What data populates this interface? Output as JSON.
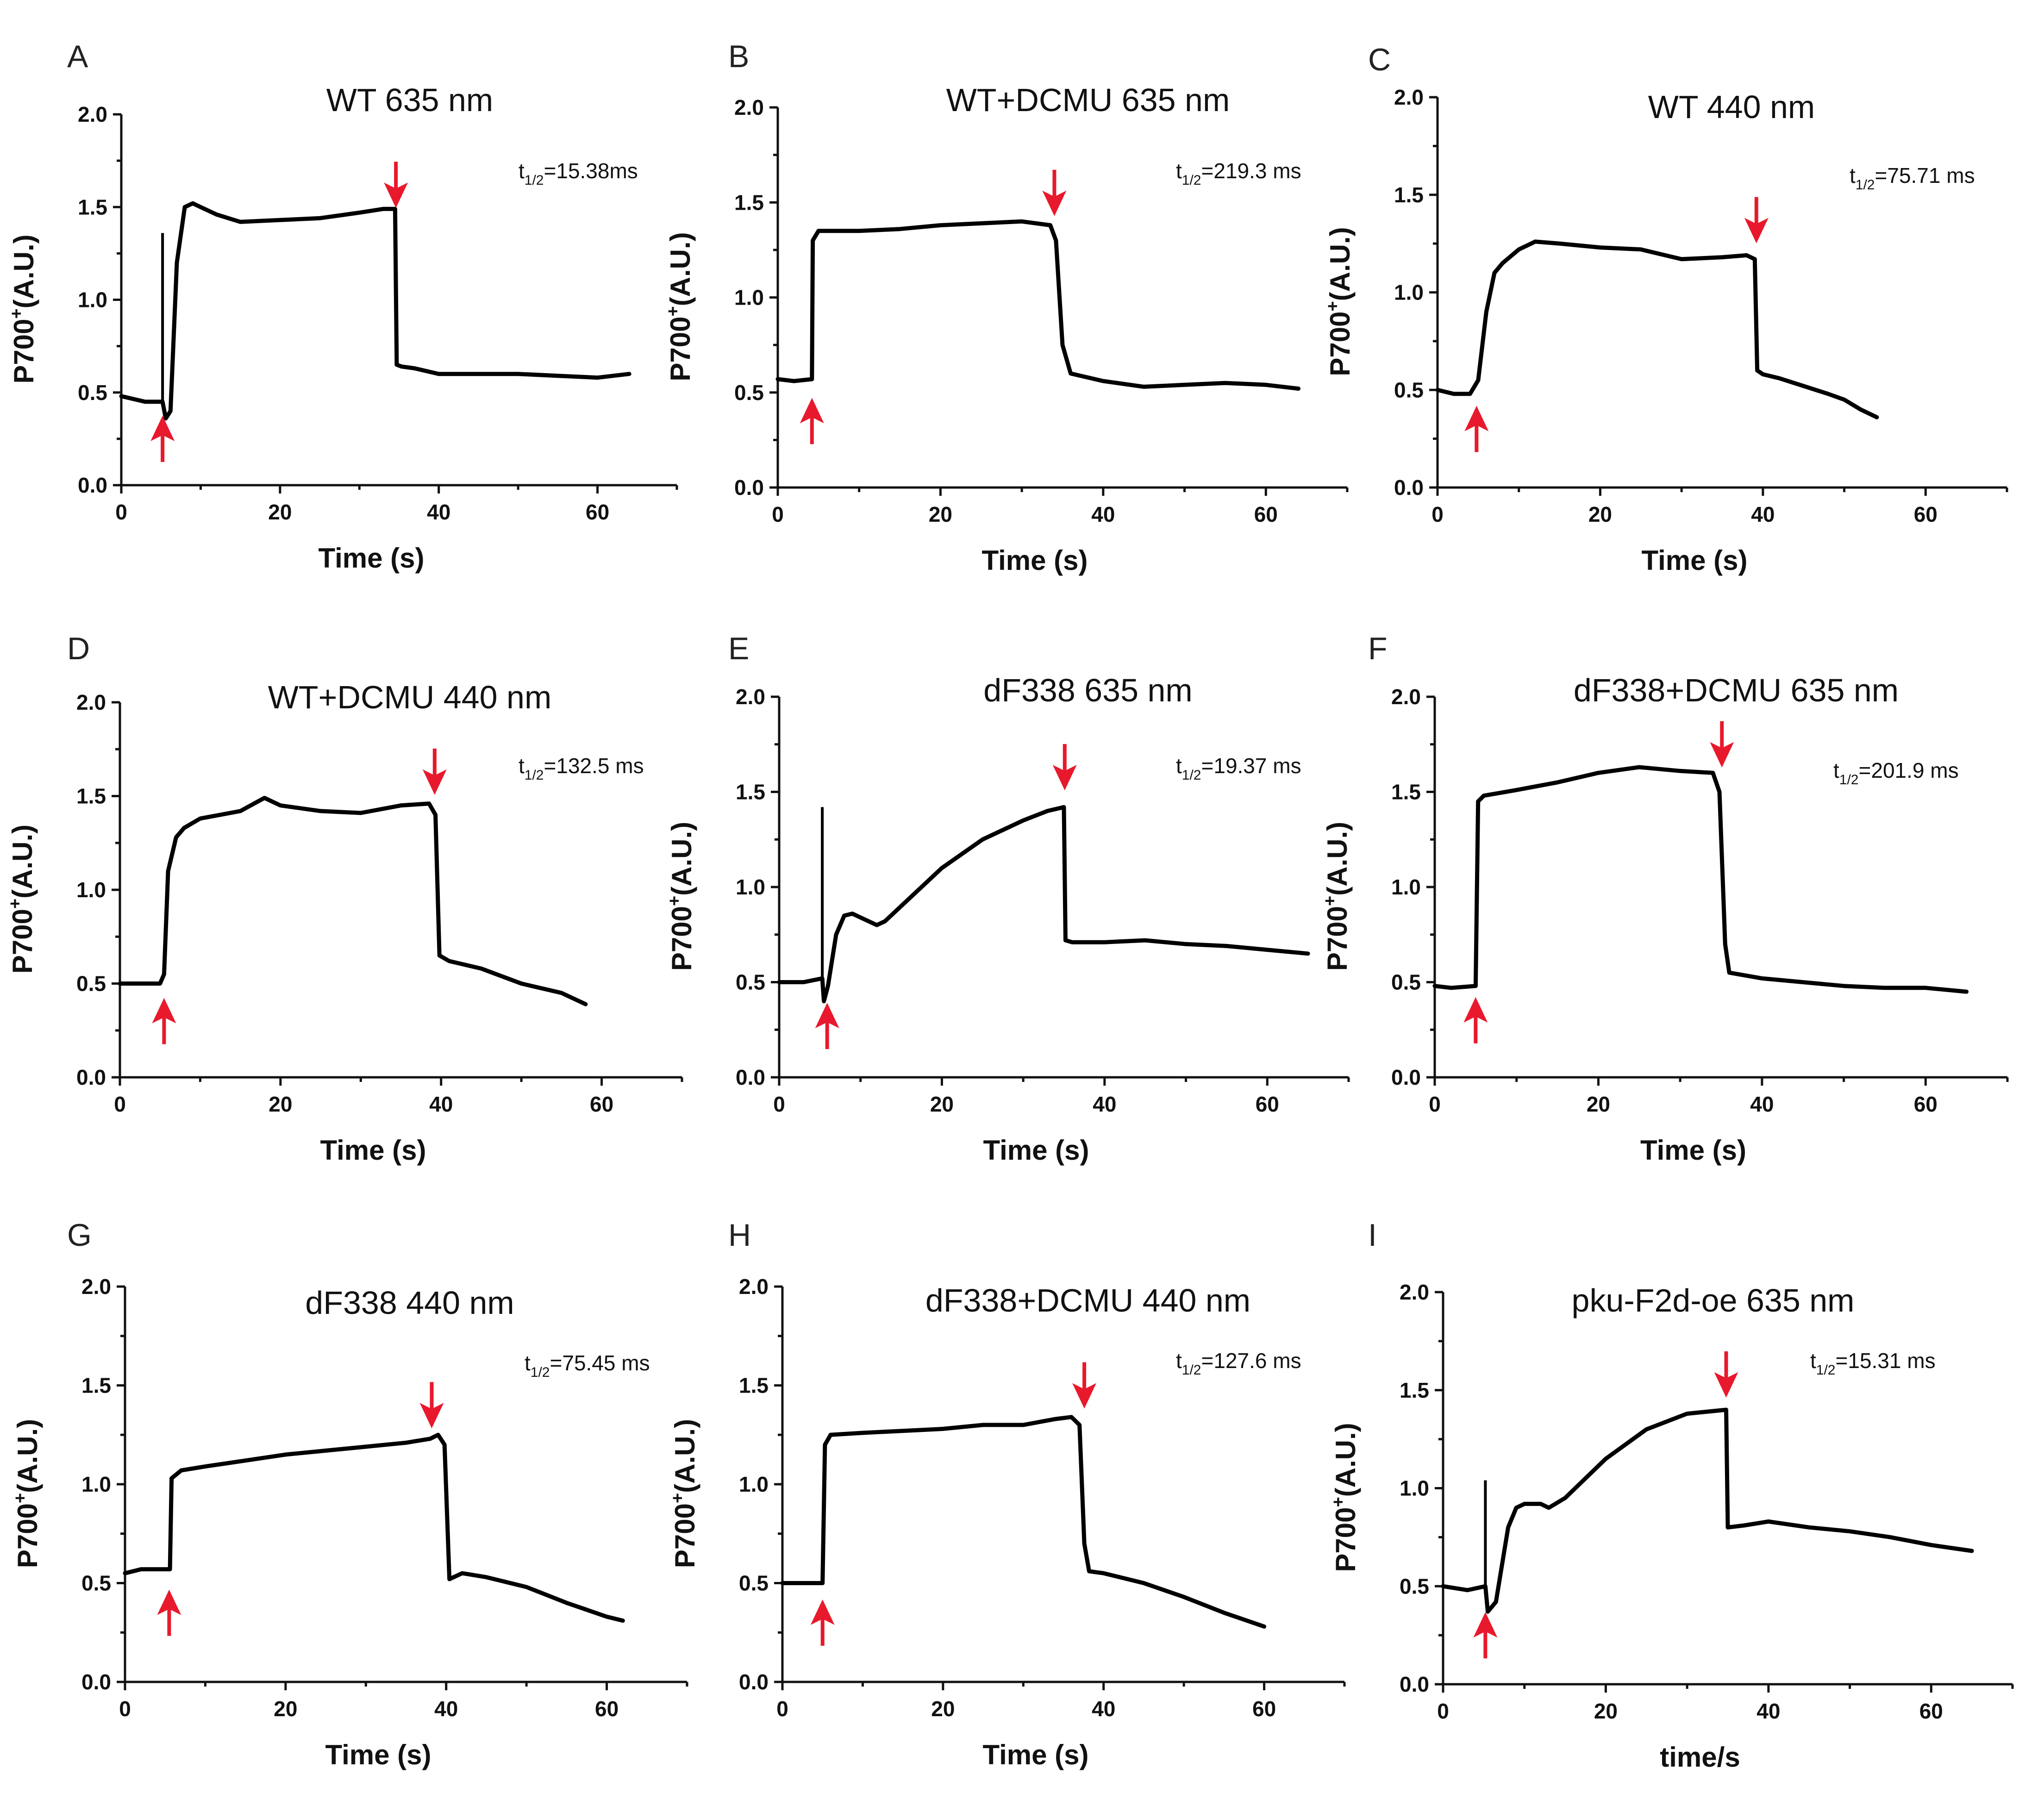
{
  "colors": {
    "trace": "#000000",
    "arrow": "#e8192c",
    "axis": "#111111"
  },
  "chart_data": [
    {
      "type": "line",
      "letter": "A",
      "title": "WT 635 nm",
      "t_half": "=15.38ms",
      "xlabel": "Time (s)",
      "ylabel": "P700",
      "ylabel_sup": "+",
      "ylabel_suffix": "(A.U.)",
      "xlim": [
        0,
        70
      ],
      "ylim": [
        0,
        2.0
      ],
      "xticks": [
        0,
        20,
        40,
        60
      ],
      "yticks": [
        "0.0",
        "0.5",
        "1.0",
        "1.5",
        "2.0"
      ],
      "series": [
        {
          "name": "P700+",
          "x": [
            0,
            3,
            5.2,
            5.6,
            6.2,
            7,
            8,
            9,
            10,
            12,
            15,
            20,
            25,
            30,
            33,
            34.5,
            34.7,
            35.3,
            37,
            40,
            45,
            50,
            55,
            60,
            64
          ],
          "y": [
            0.48,
            0.45,
            0.45,
            0.36,
            0.4,
            1.2,
            1.5,
            1.52,
            1.5,
            1.46,
            1.42,
            1.43,
            1.44,
            1.47,
            1.49,
            1.49,
            0.65,
            0.64,
            0.63,
            0.6,
            0.6,
            0.6,
            0.59,
            0.58,
            0.6
          ]
        }
      ],
      "spikes": [
        {
          "x": 5.2,
          "y": 1.36
        }
      ],
      "on_arrow": {
        "x": 5.2,
        "y": 0.25
      },
      "off_arrow": {
        "x": 34.6,
        "y": 1.62
      }
    },
    {
      "type": "line",
      "letter": "B",
      "title": "WT+DCMU 635 nm",
      "t_half": "=219.3 ms",
      "xlabel": "Time (s)",
      "ylabel": "P700",
      "ylabel_sup": "+",
      "ylabel_suffix": "(A.U.)",
      "xlim": [
        0,
        70
      ],
      "ylim": [
        0,
        2.0
      ],
      "xticks": [
        0,
        20,
        40,
        60
      ],
      "yticks": [
        "0.0",
        "0.5",
        "1.0",
        "1.5",
        "2.0"
      ],
      "series": [
        {
          "name": "P700+",
          "x": [
            0,
            2,
            4.2,
            4.3,
            5,
            10,
            15,
            20,
            25,
            30,
            33.5,
            34.2,
            35,
            36,
            40,
            45,
            50,
            55,
            60,
            64
          ],
          "y": [
            0.57,
            0.56,
            0.57,
            1.3,
            1.35,
            1.35,
            1.36,
            1.38,
            1.39,
            1.4,
            1.38,
            1.3,
            0.75,
            0.6,
            0.56,
            0.53,
            0.54,
            0.55,
            0.54,
            0.52
          ]
        }
      ],
      "spikes": [],
      "on_arrow": {
        "x": 4.2,
        "y": 0.35
      },
      "off_arrow": {
        "x": 34.0,
        "y": 1.55
      }
    },
    {
      "type": "line",
      "letter": "C",
      "title": "WT 440 nm",
      "t_half": "=75.71 ms",
      "xlabel": "Time (s)",
      "ylabel": "P700",
      "ylabel_sup": "+",
      "ylabel_suffix": "(A.U.)",
      "xlim": [
        0,
        70
      ],
      "ylim": [
        0,
        2.0
      ],
      "xticks": [
        0,
        20,
        40,
        60
      ],
      "yticks": [
        "0.0",
        "0.5",
        "1.0",
        "1.5",
        "2.0"
      ],
      "series": [
        {
          "name": "P700+",
          "x": [
            0,
            2,
            4,
            5,
            6,
            7,
            8,
            10,
            12,
            15,
            20,
            25,
            30,
            35,
            38,
            39,
            39.3,
            40,
            42,
            45,
            48,
            50,
            52,
            54
          ],
          "y": [
            0.5,
            0.48,
            0.48,
            0.55,
            0.9,
            1.1,
            1.15,
            1.22,
            1.26,
            1.25,
            1.23,
            1.22,
            1.17,
            1.18,
            1.19,
            1.17,
            0.6,
            0.58,
            0.56,
            0.52,
            0.48,
            0.45,
            0.4,
            0.36
          ]
        }
      ],
      "spikes": [],
      "on_arrow": {
        "x": 4.8,
        "y": 0.3
      },
      "off_arrow": {
        "x": 39.2,
        "y": 1.37
      }
    },
    {
      "type": "line",
      "letter": "D",
      "title": "WT+DCMU 440 nm",
      "t_half": "=132.5 ms",
      "xlabel": "Time (s)",
      "ylabel": "P700",
      "ylabel_sup": "+",
      "ylabel_suffix": "(A.U.)",
      "xlim": [
        0,
        70
      ],
      "ylim": [
        0,
        2.0
      ],
      "xticks": [
        0,
        20,
        40,
        60
      ],
      "yticks": [
        "0.0",
        "0.5",
        "1.0",
        "1.5",
        "2.0"
      ],
      "series": [
        {
          "name": "P700+",
          "x": [
            0,
            2,
            5,
            5.5,
            6,
            7,
            8,
            10,
            15,
            18,
            20,
            25,
            30,
            35,
            38.5,
            39.3,
            39.8,
            41,
            45,
            50,
            55,
            58
          ],
          "y": [
            0.5,
            0.5,
            0.5,
            0.55,
            1.1,
            1.28,
            1.33,
            1.38,
            1.42,
            1.49,
            1.45,
            1.42,
            1.41,
            1.45,
            1.46,
            1.4,
            0.65,
            0.62,
            0.58,
            0.5,
            0.45,
            0.39
          ]
        }
      ],
      "spikes": [],
      "on_arrow": {
        "x": 5.5,
        "y": 0.3
      },
      "off_arrow": {
        "x": 39.2,
        "y": 1.63
      }
    },
    {
      "type": "line",
      "letter": "E",
      "title": "dF338 635 nm",
      "t_half": "=19.37 ms",
      "xlabel": "Time (s)",
      "ylabel": "P700",
      "ylabel_sup": "+",
      "ylabel_suffix": "(A.U.)",
      "xlim": [
        0,
        70
      ],
      "ylim": [
        0,
        2.0
      ],
      "xticks": [
        0,
        20,
        40,
        60
      ],
      "yticks": [
        "0.0",
        "0.5",
        "1.0",
        "1.5",
        "2.0"
      ],
      "series": [
        {
          "name": "P700+",
          "x": [
            0,
            3,
            5.3,
            5.5,
            6,
            7,
            8,
            9,
            10,
            12,
            13,
            15,
            20,
            25,
            30,
            33,
            35,
            35.2,
            36,
            40,
            45,
            50,
            55,
            60,
            65
          ],
          "y": [
            0.5,
            0.5,
            0.52,
            0.4,
            0.48,
            0.75,
            0.85,
            0.86,
            0.84,
            0.8,
            0.82,
            0.9,
            1.1,
            1.25,
            1.35,
            1.4,
            1.42,
            0.72,
            0.71,
            0.71,
            0.72,
            0.7,
            0.69,
            0.67,
            0.65
          ]
        }
      ],
      "spikes": [
        {
          "x": 5.3,
          "y": 1.42
        }
      ],
      "on_arrow": {
        "x": 5.9,
        "y": 0.27
      },
      "off_arrow": {
        "x": 35.1,
        "y": 1.63
      }
    },
    {
      "type": "line",
      "letter": "F",
      "title": "dF338+DCMU 635 nm",
      "t_half": "=201.9 ms",
      "xlabel": "Time (s)",
      "ylabel": "P700",
      "ylabel_sup": "+",
      "ylabel_suffix": "(A.U.)",
      "xlim": [
        0,
        70
      ],
      "ylim": [
        0,
        2.0
      ],
      "xticks": [
        0,
        20,
        40,
        60
      ],
      "yticks": [
        "0.0",
        "0.5",
        "1.0",
        "1.5",
        "2.0"
      ],
      "series": [
        {
          "name": "P700+",
          "x": [
            0,
            2,
            5,
            5.3,
            6,
            10,
            15,
            20,
            25,
            30,
            34,
            34.8,
            35.5,
            36,
            40,
            45,
            50,
            55,
            60,
            65
          ],
          "y": [
            0.48,
            0.47,
            0.48,
            1.45,
            1.48,
            1.51,
            1.55,
            1.6,
            1.63,
            1.61,
            1.6,
            1.5,
            0.7,
            0.55,
            0.52,
            0.5,
            0.48,
            0.47,
            0.47,
            0.45
          ]
        }
      ],
      "spikes": [],
      "on_arrow": {
        "x": 5.0,
        "y": 0.3
      },
      "off_arrow": {
        "x": 35.1,
        "y": 1.75
      }
    },
    {
      "type": "line",
      "letter": "G",
      "title": "dF338 440 nm",
      "t_half": "=75.45 ms",
      "xlabel": "Time (s)",
      "ylabel": "P700",
      "ylabel_sup": "+",
      "ylabel_suffix": "(A.U.)",
      "xlim": [
        0,
        70
      ],
      "ylim": [
        0,
        2.0
      ],
      "xticks": [
        0,
        20,
        40,
        60
      ],
      "yticks": [
        "0.0",
        "0.5",
        "1.0",
        "1.5",
        "2.0"
      ],
      "series": [
        {
          "name": "P700+",
          "x": [
            0,
            2,
            5.6,
            5.8,
            7,
            10,
            15,
            20,
            25,
            30,
            35,
            38,
            39,
            39.8,
            40.4,
            42,
            45,
            50,
            55,
            60,
            62
          ],
          "y": [
            0.55,
            0.57,
            0.57,
            1.03,
            1.07,
            1.09,
            1.12,
            1.15,
            1.17,
            1.19,
            1.21,
            1.23,
            1.25,
            1.2,
            0.52,
            0.55,
            0.53,
            0.48,
            0.4,
            0.33,
            0.31
          ]
        }
      ],
      "spikes": [],
      "on_arrow": {
        "x": 5.5,
        "y": 0.35
      },
      "off_arrow": {
        "x": 38.2,
        "y": 1.4
      }
    },
    {
      "type": "line",
      "letter": "H",
      "title": "dF338+DCMU 440 nm",
      "t_half": "=127.6 ms",
      "xlabel": "Time (s)",
      "ylabel": "P700",
      "ylabel_sup": "+",
      "ylabel_suffix": "(A.U.)",
      "xlim": [
        0,
        70
      ],
      "ylim": [
        0,
        2.0
      ],
      "xticks": [
        0,
        20,
        40,
        60
      ],
      "yticks": [
        "0.0",
        "0.5",
        "1.0",
        "1.5",
        "2.0"
      ],
      "series": [
        {
          "name": "P700+",
          "x": [
            0,
            2,
            5,
            5.3,
            6,
            10,
            15,
            20,
            25,
            30,
            34,
            36,
            37,
            37.6,
            38.2,
            40,
            45,
            50,
            55,
            60
          ],
          "y": [
            0.5,
            0.5,
            0.5,
            1.2,
            1.25,
            1.26,
            1.27,
            1.28,
            1.3,
            1.3,
            1.33,
            1.34,
            1.3,
            0.7,
            0.56,
            0.55,
            0.5,
            0.43,
            0.35,
            0.28
          ]
        }
      ],
      "spikes": [],
      "on_arrow": {
        "x": 5.0,
        "y": 0.3
      },
      "off_arrow": {
        "x": 37.6,
        "y": 1.5
      }
    },
    {
      "type": "line",
      "letter": "I",
      "title": "pku-F2d-oe 635 nm",
      "t_half": "=15.31 ms",
      "xlabel": "time/s",
      "ylabel": "P700",
      "ylabel_sup": "+",
      "ylabel_suffix": "(A.U.)",
      "xlim": [
        0,
        70
      ],
      "ylim": [
        0,
        2.0
      ],
      "xticks": [
        0,
        20,
        40,
        60
      ],
      "yticks": [
        "0.0",
        "0.5",
        "1.0",
        "1.5",
        "2.0"
      ],
      "series": [
        {
          "name": "P700+",
          "x": [
            0,
            3,
            5.2,
            5.5,
            6.5,
            8,
            9,
            10,
            12,
            13,
            15,
            20,
            25,
            30,
            34.8,
            35,
            37,
            40,
            45,
            50,
            55,
            60,
            65
          ],
          "y": [
            0.5,
            0.48,
            0.5,
            0.37,
            0.42,
            0.8,
            0.9,
            0.92,
            0.92,
            0.9,
            0.95,
            1.15,
            1.3,
            1.38,
            1.4,
            0.8,
            0.81,
            0.83,
            0.8,
            0.78,
            0.75,
            0.71,
            0.68
          ]
        }
      ],
      "spikes": [
        {
          "x": 5.2,
          "y": 1.04
        }
      ],
      "on_arrow": {
        "x": 5.2,
        "y": 0.25
      },
      "off_arrow": {
        "x": 34.8,
        "y": 1.58
      }
    }
  ]
}
